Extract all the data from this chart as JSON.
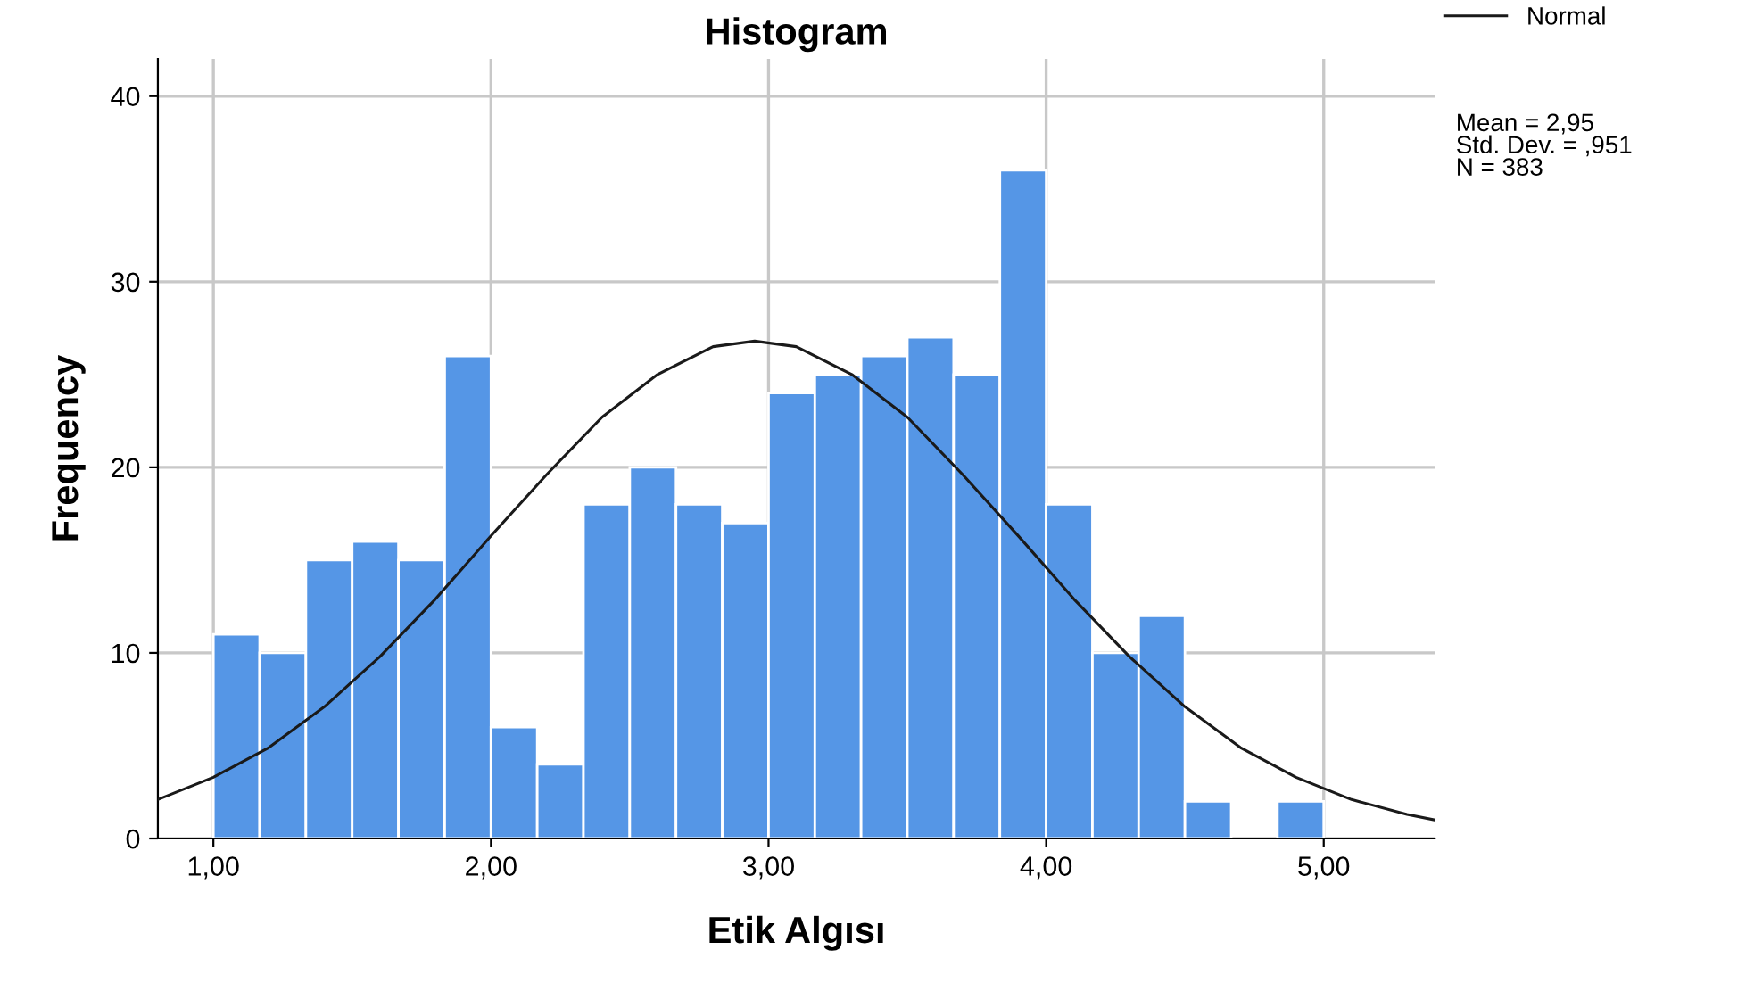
{
  "chart_data": {
    "type": "histogram",
    "title": "Histogram",
    "xlabel": "Etik Algısı",
    "ylabel": "Frequency",
    "bins": [
      1.0,
      1.1667,
      1.3333,
      1.5,
      1.6667,
      1.8333,
      2.0,
      2.1667,
      2.3333,
      2.5,
      2.6667,
      2.8333,
      3.0,
      3.1667,
      3.3333,
      3.5,
      3.6667,
      3.8333,
      4.0,
      4.1667,
      4.3333,
      4.5,
      4.6667,
      4.8333,
      5.0
    ],
    "values": [
      11,
      10,
      15,
      16,
      15,
      26,
      6,
      4,
      18,
      20,
      18,
      17,
      24,
      25,
      26,
      27,
      25,
      36,
      18,
      10,
      12,
      2,
      0,
      2
    ],
    "color": "#5596e6",
    "series": [
      {
        "type": "line",
        "name": "Normal",
        "color": "#1a1a1a",
        "x": [
          0.8,
          1.0,
          1.2,
          1.4,
          1.6,
          1.8,
          2.0,
          2.2,
          2.4,
          2.6,
          2.8,
          2.95,
          3.1,
          3.3,
          3.5,
          3.7,
          3.9,
          4.1,
          4.3,
          4.5,
          4.7,
          4.9,
          5.1,
          5.3,
          5.4
        ],
        "values": [
          2.1,
          3.3,
          4.9,
          7.1,
          9.8,
          12.9,
          16.3,
          19.6,
          22.7,
          25.0,
          26.5,
          26.8,
          26.5,
          25.0,
          22.7,
          19.6,
          16.3,
          12.9,
          9.8,
          7.1,
          4.9,
          3.3,
          2.1,
          1.3,
          1.0
        ]
      }
    ],
    "xlim": [
      0.8,
      5.4
    ],
    "xticks": [
      {
        "value": 1,
        "label": "1,00"
      },
      {
        "value": 2,
        "label": "2,00"
      },
      {
        "value": 3,
        "label": "3,00"
      },
      {
        "value": 4,
        "label": "4,00"
      },
      {
        "value": 5,
        "label": "5,00"
      }
    ],
    "ylim": [
      0,
      42
    ],
    "yticks": [
      0,
      10,
      20,
      30,
      40
    ],
    "grid": true,
    "legend": "top right",
    "annotations": [
      "Mean = 2,95\nStd. Dev. = ,951\nN = 383"
    ]
  }
}
